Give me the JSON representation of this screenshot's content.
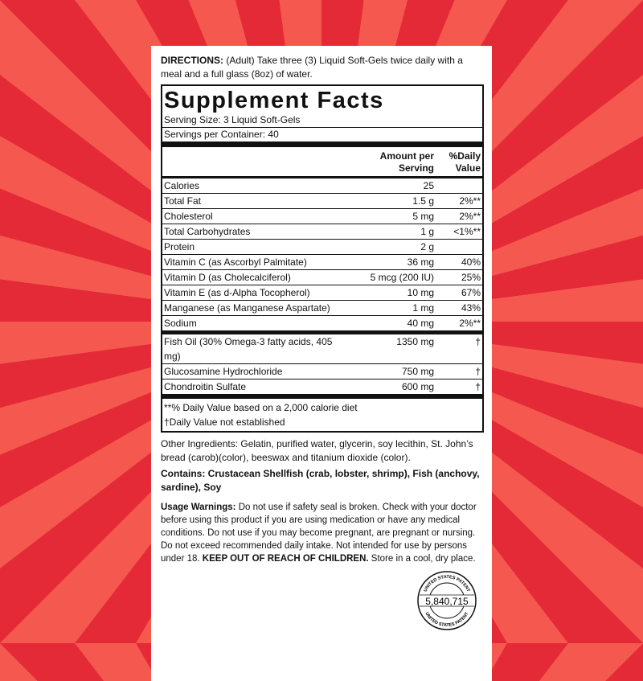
{
  "directions": {
    "label": "DIRECTIONS:",
    "text": " (Adult) Take three (3) Liquid Soft-Gels twice daily with a meal and a full glass (8oz) of water."
  },
  "facts": {
    "title": "Supplement Facts",
    "serving_size": "Serving Size:  3 Liquid Soft-Gels",
    "servings_per_container": "Servings per Container:  40",
    "header": {
      "amount": "Amount per Serving",
      "dv": "%Daily Value"
    },
    "rows": [
      {
        "name": "Calories",
        "amount": "25",
        "dv": ""
      },
      {
        "name": "Total Fat",
        "amount": "1.5 g",
        "dv": "2%**"
      },
      {
        "name": "Cholesterol",
        "amount": "5 mg",
        "dv": "2%**"
      },
      {
        "name": "Total Carbohydrates",
        "amount": "1 g",
        "dv": "<1%**"
      },
      {
        "name": "Protein",
        "amount": "2 g",
        "dv": ""
      },
      {
        "name": "Vitamin C (as Ascorbyl Palmitate)",
        "amount": "36 mg",
        "dv": "40%"
      },
      {
        "name": "Vitamin D (as Cholecalciferol)",
        "amount": "5 mcg (200 IU)",
        "dv": "25%"
      },
      {
        "name": "Vitamin E (as d-Alpha Tocopherol)",
        "amount": "10 mg",
        "dv": "67%"
      },
      {
        "name": "Manganese (as Manganese Aspartate)",
        "amount": "1 mg",
        "dv": "43%"
      },
      {
        "name": "Sodium",
        "amount": "40 mg",
        "dv": "2%**"
      }
    ],
    "rows2": [
      {
        "name": "Fish Oil (30% Omega-3 fatty acids, 405 mg)",
        "amount": "1350 mg",
        "dv": "†"
      },
      {
        "name": "Glucosamine Hydrochloride",
        "amount": "750 mg",
        "dv": "†"
      },
      {
        "name": "Chondroitin Sulfate",
        "amount": "600 mg",
        "dv": "†"
      }
    ],
    "footnote1": "**% Daily Value based on a 2,000 calorie diet",
    "footnote2": "†Daily Value not established"
  },
  "other_ingredients": "Other Ingredients: Gelatin, purified water, glycerin, soy lecithin, St. John’s bread (carob)(color), beeswax and titanium dioxide (color).",
  "contains": "Contains: Crustacean Shellfish (crab, lobster, shrimp), Fish (anchovy, sardine), Soy",
  "warnings": {
    "label": "Usage Warnings:",
    "text": " Do not use if safety seal is broken. Check with your doctor before using this product if you are using medication or have any medical conditions. Do not use if you may become pregnant, are pregnant or nursing. Do not exceed recommended daily intake. Not intended for use by persons under 18. ",
    "bold": "KEEP OUT OF REACH OF CHILDREN.",
    "end": " Store in a cool, dry place."
  },
  "seal": {
    "top": "UNITED STATES PATENT",
    "number": "5,840,715",
    "bottom": "UNITED STATES PATENT"
  },
  "colors": {
    "ray_dark": "#e42a36",
    "ray_light": "#f4584e"
  }
}
